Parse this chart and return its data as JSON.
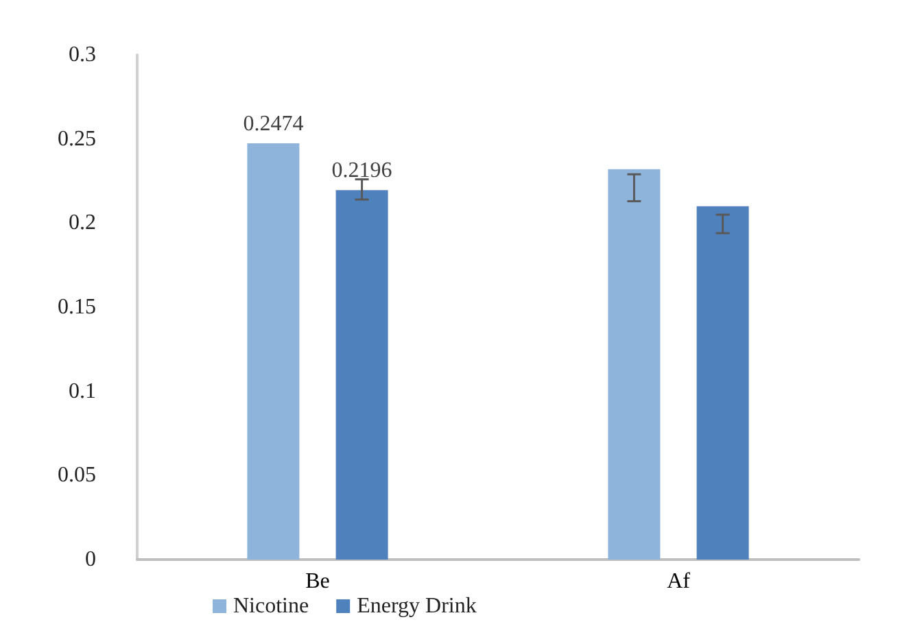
{
  "chart_data": {
    "type": "bar",
    "categories": [
      "Be",
      "Af"
    ],
    "series": [
      {
        "name": "Nicotine",
        "color": "#8fb4dc",
        "values": [
          0.2474,
          0.232
        ],
        "errors": [
          null,
          [
            0.213,
            0.229
          ]
        ],
        "value_labels": [
          "0.2474",
          null
        ]
      },
      {
        "name": "Energy Drink",
        "color": "#4f81bd",
        "values": [
          0.2196,
          0.21
        ],
        "errors": [
          [
            0.214,
            0.226
          ],
          [
            0.194,
            0.205
          ]
        ],
        "value_labels": [
          "0.2196",
          null
        ]
      }
    ],
    "ylim": [
      0,
      0.3
    ],
    "yticks": [
      0,
      0.05,
      0.1,
      0.15,
      0.2,
      0.25,
      0.3
    ],
    "grid": false,
    "legend": "bottom"
  }
}
